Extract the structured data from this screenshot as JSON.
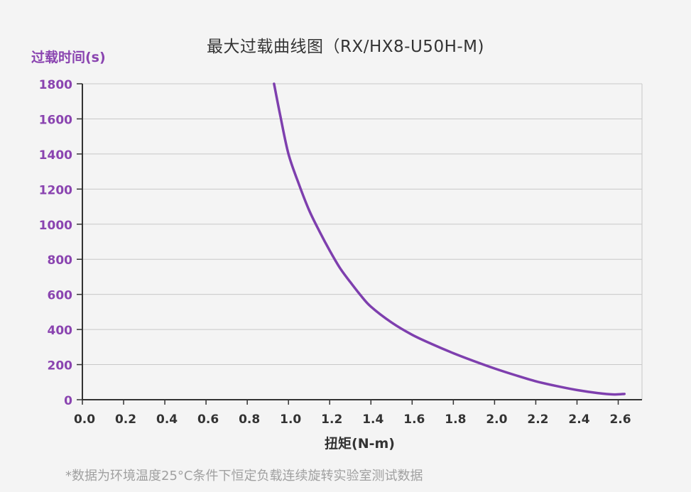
{
  "chart_data": {
    "type": "line",
    "title": "最大过载曲线图（RX/HX8-U50H-M)",
    "ylabel": "过载时间(s)",
    "xlabel": "扭矩(N-m)",
    "xlim": [
      0,
      2.7
    ],
    "ylim": [
      0,
      1800
    ],
    "xticks": [
      "0.0",
      "0.2",
      "0.4",
      "0.6",
      "0.8",
      "1.0",
      "1.2",
      "1.4",
      "1.6",
      "1.8",
      "2.0",
      "2.2",
      "2.4",
      "2.6"
    ],
    "yticks": [
      "0",
      "200",
      "400",
      "600",
      "800",
      "1000",
      "1200",
      "1400",
      "1600",
      "1800"
    ],
    "grid": true,
    "series": [
      {
        "color": "#7e3fae",
        "x": [
          0.93,
          0.96,
          1.0,
          1.05,
          1.1,
          1.15,
          1.2,
          1.25,
          1.3,
          1.35,
          1.4,
          1.5,
          1.6,
          1.7,
          1.8,
          1.9,
          2.0,
          2.1,
          2.2,
          2.3,
          2.4,
          2.5,
          2.58,
          2.63
        ],
        "y": [
          1800,
          1620,
          1400,
          1230,
          1080,
          960,
          850,
          750,
          670,
          595,
          530,
          440,
          370,
          315,
          265,
          220,
          178,
          140,
          105,
          78,
          55,
          38,
          30,
          33
        ]
      }
    ]
  },
  "footnote": "*数据为环境温度25°C条件下恒定负载连续旋转实验室测试数据",
  "colors": {
    "accent": "#8a44b0",
    "curve": "#7e3fae",
    "axis": "#333333",
    "grid": "#c8c8c8"
  }
}
